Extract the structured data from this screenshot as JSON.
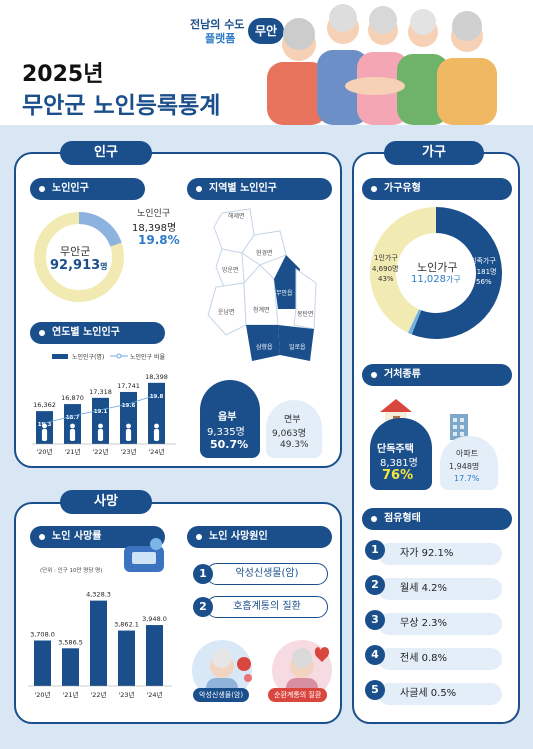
{
  "brand": {
    "line1": "전남의 수도",
    "line2": "플랫폼",
    "logo": "무안"
  },
  "header": {
    "year_title": "2025년",
    "main_title": "무안군 노인등록통계"
  },
  "population": {
    "section_title": "인구",
    "elderly": {
      "title": "노인인구",
      "center_label": "무안군",
      "center_value": "92,913",
      "center_unit": "명",
      "side_label": "노인인구",
      "side_value": "18,398명",
      "side_pct": "19.8%",
      "share": 0.198
    },
    "regional": {
      "title": "지역별 노인인구",
      "map_labels": [
        "해제면",
        "현경면",
        "망운면",
        "운남면",
        "청계면",
        "무안읍",
        "몽탄면",
        "일로읍",
        "삼향읍"
      ],
      "eup": {
        "label": "읍부",
        "value": "9,335명",
        "pct": "50.7%"
      },
      "myeon": {
        "label": "면부",
        "value": "9,063명",
        "pct": "49.3%"
      }
    },
    "yearly": {
      "title": "연도별 노인인구",
      "legend_bar": "노인인구(명)",
      "legend_line": "노인인구 비율",
      "values_text": [
        "16,362",
        "16,870",
        "17,318",
        "17,741",
        "18,398"
      ],
      "ratios_text": [
        "19.3",
        "18.7",
        "19.1",
        "19.6",
        "19.8"
      ],
      "years": [
        "'20년",
        "'21년",
        "'22년",
        "'23년",
        "'24년"
      ]
    }
  },
  "household": {
    "section_title": "가구",
    "type": {
      "title": "가구유형",
      "center_label": "노인가구",
      "center_value": "11,028",
      "center_unit": "가구",
      "single": {
        "label": "1인가구",
        "value": "4,690명",
        "pct": "43%"
      },
      "family": {
        "label": "친족가구",
        "value": "6,181명",
        "pct": "56%"
      },
      "shares": [
        0.56,
        0.01,
        0.43
      ]
    },
    "residence": {
      "title": "거처종류",
      "house": {
        "label": "단독주택",
        "value": "8,381명",
        "pct": "76%"
      },
      "apartment": {
        "label": "아파트",
        "value": "1,948명",
        "pct": "17.7%"
      }
    },
    "occupancy": {
      "title": "점유형태",
      "items": [
        {
          "num": "1",
          "text": "자가 92.1%"
        },
        {
          "num": "2",
          "text": "월세 4.2%"
        },
        {
          "num": "3",
          "text": "무상 2.3%"
        },
        {
          "num": "4",
          "text": "전세 0.8%"
        },
        {
          "num": "5",
          "text": "사글세 0.5%"
        }
      ]
    }
  },
  "death": {
    "section_title": "사망",
    "rate": {
      "title": "노인 사망률",
      "unit_note": "(단위 : 인구 10만 명당 명)",
      "values_text": [
        "3,708.0",
        "3,586.5",
        "4,328.3",
        "3,862.1",
        "3,948.0"
      ],
      "years": [
        "'20년",
        "'21년",
        "'22년",
        "'23년",
        "'24년"
      ]
    },
    "cause": {
      "title": "노인 사망원인",
      "items": [
        {
          "num": "1",
          "text": "악성신생물(암)"
        },
        {
          "num": "2",
          "text": "호흡계통의 질환"
        }
      ],
      "badge1": "악성신생물(암)",
      "badge2": "순환계통의 질환"
    }
  },
  "chart_data": [
    {
      "type": "bar",
      "title": "연도별 노인인구",
      "categories": [
        "'20년",
        "'21년",
        "'22년",
        "'23년",
        "'24년"
      ],
      "series": [
        {
          "name": "노인인구(명)",
          "values": [
            16362,
            16870,
            17318,
            17741,
            18398
          ]
        },
        {
          "name": "노인인구 비율",
          "values": [
            19.3,
            18.7,
            19.1,
            19.6,
            19.8
          ]
        }
      ]
    },
    {
      "type": "bar",
      "title": "노인 사망률",
      "categories": [
        "'20년",
        "'21년",
        "'22년",
        "'23년",
        "'24년"
      ],
      "values": [
        3708.0,
        3586.5,
        4328.3,
        3862.1,
        3948.0
      ]
    }
  ],
  "colors": {
    "navy": "#1b4f8c",
    "cream": "#f1ebb3",
    "light_blue": "#e3eef9",
    "green_text": "#f4e73c",
    "bg_blue": "#d9e6f4"
  }
}
